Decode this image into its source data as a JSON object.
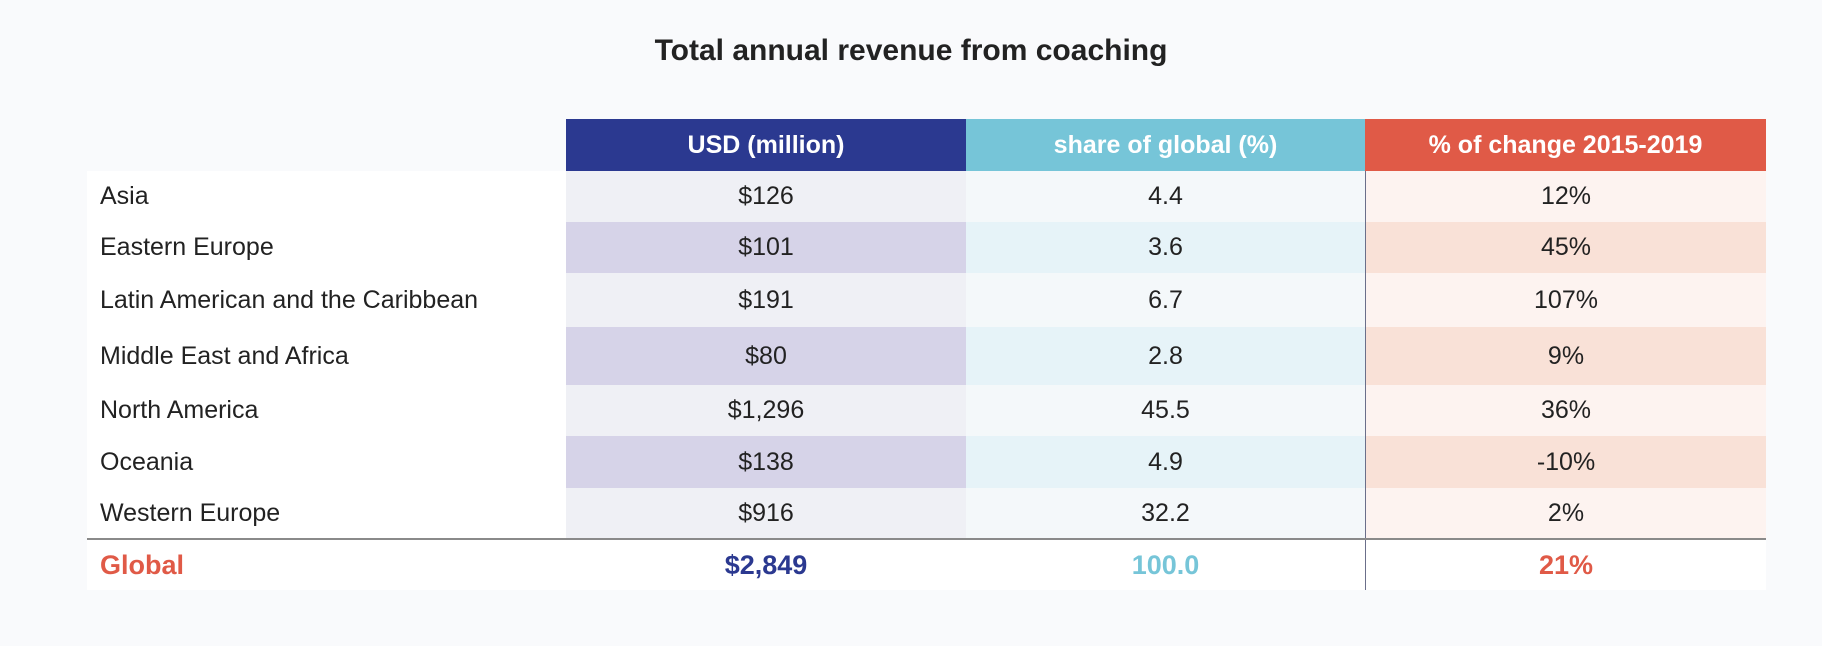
{
  "chart_data": {
    "type": "table",
    "title": "Total annual revenue from coaching",
    "columns": [
      "USD (million)",
      "share of global (%)",
      "% of change 2015-2019"
    ],
    "rows": [
      {
        "region": "Asia",
        "usd": "$126",
        "share": "4.4",
        "change": "12%"
      },
      {
        "region": "Eastern Europe",
        "usd": "$101",
        "share": "3.6",
        "change": "45%"
      },
      {
        "region": "Latin American and the Caribbean",
        "usd": "$191",
        "share": "6.7",
        "change": "107%"
      },
      {
        "region": "Middle East and Africa",
        "usd": "$80",
        "share": "2.8",
        "change": "9%"
      },
      {
        "region": "North America",
        "usd": "$1,296",
        "share": "45.5",
        "change": "36%"
      },
      {
        "region": "Oceania",
        "usd": "$138",
        "share": "4.9",
        "change": "-10%"
      },
      {
        "region": "Western Europe",
        "usd": "$916",
        "share": "32.2",
        "change": "2%"
      }
    ],
    "total": {
      "region": "Global",
      "usd": "$2,849",
      "share": "100.0",
      "change": "21%"
    },
    "colors": {
      "usd": "#2b3990",
      "share": "#76c5d8",
      "change": "#e05a47"
    }
  }
}
